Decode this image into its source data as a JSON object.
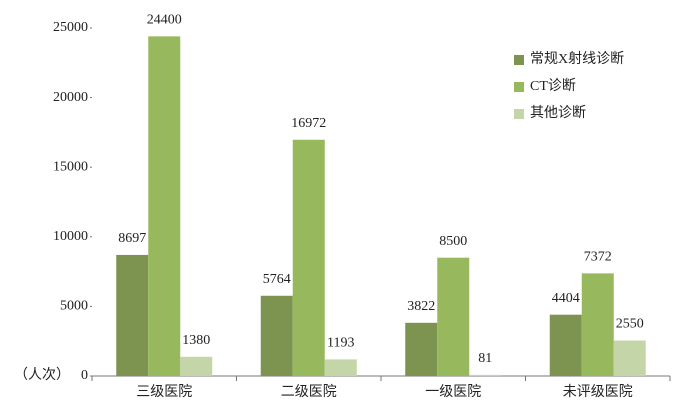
{
  "chart_data": {
    "type": "bar",
    "y_label": "（人次）",
    "categories": [
      "三级医院",
      "二级医院",
      "一级医院",
      "未评级医院"
    ],
    "series": [
      {
        "name": "常规X射线诊断",
        "color": "#7d9450",
        "values": [
          8697,
          5764,
          3822,
          4404
        ]
      },
      {
        "name": "CT诊断",
        "color": "#97b85c",
        "values": [
          24400,
          16972,
          8500,
          7372
        ]
      },
      {
        "name": "其他诊断",
        "color": "#c4d5a8",
        "values": [
          1380,
          1193,
          81,
          2550
        ]
      }
    ],
    "ylim": [
      0,
      25000
    ],
    "yticks": [
      0,
      5000,
      10000,
      15000,
      20000,
      25000
    ],
    "grid": false,
    "legend": "top-right"
  }
}
